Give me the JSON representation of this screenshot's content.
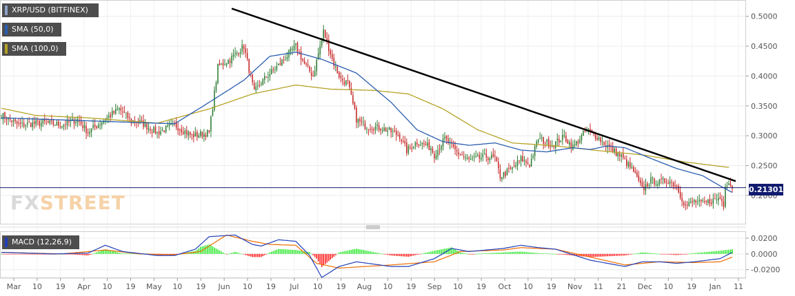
{
  "legend": {
    "pair": "XRP/USD (BITFINEX)",
    "sma50": "SMA (50,0)",
    "sma100": "SMA (100,0)",
    "macd": "MACD (12,26,9)"
  },
  "watermark": {
    "part1": "FX",
    "part2": "STREET"
  },
  "last_price": "0.21301",
  "colors": {
    "bull": "#2e7d32",
    "bear": "#c62828",
    "sma50": "#2a5db0",
    "sma100": "#b5a225",
    "trendline": "#000000",
    "price_line": "#111b6e",
    "macd_line": "#1f3fb8",
    "signal_line": "#ef6c00",
    "hist_pos": "#2ee82e",
    "hist_neg": "#ff1a1a"
  },
  "chart_data": {
    "type": "candlestick",
    "title": "XRP/USD (BITFINEX)",
    "price_axis": {
      "ticks": [
        0.5,
        0.45,
        0.4,
        0.35,
        0.3,
        0.25,
        0.2
      ],
      "tick_labels": [
        "0.5000",
        "0.4500",
        "0.4000",
        "0.3500",
        "0.3000",
        "0.2500",
        "0.2000"
      ],
      "ylim": [
        0.155,
        0.525
      ]
    },
    "macd_axis": {
      "ticks": [
        0.02,
        0.0,
        -0.02
      ],
      "tick_labels": [
        "0.0200",
        "0.0000",
        "-0.0200"
      ],
      "ylim": [
        -0.029,
        0.027
      ]
    },
    "x_tick_labels": [
      "Mar",
      "10",
      "19",
      "Apr",
      "10",
      "19",
      "May",
      "10",
      "19",
      "Jun",
      "10",
      "19",
      "Jul",
      "10",
      "19",
      "Aug",
      "10",
      "19",
      "Sep",
      "10",
      "19",
      "Oct",
      "10",
      "19",
      "Nov",
      "11",
      "21",
      "Dec",
      "10",
      "19",
      "Jan",
      "11"
    ],
    "close_anchors": [
      [
        0,
        0.335
      ],
      [
        10,
        0.318
      ],
      [
        25,
        0.322
      ],
      [
        35,
        0.318
      ],
      [
        44,
        0.327
      ],
      [
        50,
        0.306
      ],
      [
        60,
        0.328
      ],
      [
        68,
        0.345
      ],
      [
        75,
        0.325
      ],
      [
        80,
        0.323
      ],
      [
        90,
        0.305
      ],
      [
        100,
        0.318
      ],
      [
        110,
        0.3
      ],
      [
        120,
        0.305
      ],
      [
        125,
        0.415
      ],
      [
        132,
        0.428
      ],
      [
        140,
        0.45
      ],
      [
        146,
        0.372
      ],
      [
        150,
        0.39
      ],
      [
        160,
        0.418
      ],
      [
        170,
        0.45
      ],
      [
        175,
        0.42
      ],
      [
        180,
        0.4
      ],
      [
        186,
        0.475
      ],
      [
        192,
        0.42
      ],
      [
        196,
        0.395
      ],
      [
        200,
        0.388
      ],
      [
        205,
        0.328
      ],
      [
        210,
        0.316
      ],
      [
        220,
        0.313
      ],
      [
        230,
        0.3
      ],
      [
        234,
        0.275
      ],
      [
        240,
        0.29
      ],
      [
        248,
        0.28
      ],
      [
        250,
        0.268
      ],
      [
        256,
        0.295
      ],
      [
        262,
        0.275
      ],
      [
        270,
        0.259
      ],
      [
        280,
        0.265
      ],
      [
        285,
        0.262
      ],
      [
        288,
        0.232
      ],
      [
        295,
        0.245
      ],
      [
        300,
        0.261
      ],
      [
        305,
        0.252
      ],
      [
        310,
        0.295
      ],
      [
        318,
        0.285
      ],
      [
        325,
        0.298
      ],
      [
        330,
        0.281
      ],
      [
        338,
        0.31
      ],
      [
        345,
        0.296
      ],
      [
        350,
        0.282
      ],
      [
        358,
        0.265
      ],
      [
        365,
        0.24
      ],
      [
        370,
        0.21
      ],
      [
        375,
        0.225
      ],
      [
        380,
        0.222
      ],
      [
        385,
        0.226
      ],
      [
        390,
        0.215
      ],
      [
        395,
        0.182
      ],
      [
        400,
        0.19
      ],
      [
        405,
        0.186
      ],
      [
        410,
        0.191
      ],
      [
        415,
        0.196
      ],
      [
        417,
        0.185
      ],
      [
        418,
        0.22
      ],
      [
        420,
        0.222
      ],
      [
        422,
        0.215
      ]
    ],
    "sma50_anchors": [
      [
        0,
        0.33
      ],
      [
        40,
        0.326
      ],
      [
        80,
        0.322
      ],
      [
        100,
        0.32
      ],
      [
        120,
        0.356
      ],
      [
        140,
        0.393
      ],
      [
        155,
        0.433
      ],
      [
        170,
        0.44
      ],
      [
        185,
        0.428
      ],
      [
        205,
        0.405
      ],
      [
        225,
        0.356
      ],
      [
        240,
        0.31
      ],
      [
        255,
        0.29
      ],
      [
        270,
        0.284
      ],
      [
        285,
        0.288
      ],
      [
        300,
        0.276
      ],
      [
        315,
        0.273
      ],
      [
        330,
        0.28
      ],
      [
        340,
        0.277
      ],
      [
        350,
        0.283
      ],
      [
        360,
        0.28
      ],
      [
        375,
        0.262
      ],
      [
        390,
        0.245
      ],
      [
        405,
        0.233
      ],
      [
        415,
        0.216
      ],
      [
        422,
        0.205
      ]
    ],
    "sma100_anchors": [
      [
        0,
        0.346
      ],
      [
        20,
        0.334
      ],
      [
        50,
        0.33
      ],
      [
        90,
        0.321
      ],
      [
        120,
        0.345
      ],
      [
        145,
        0.37
      ],
      [
        170,
        0.385
      ],
      [
        190,
        0.378
      ],
      [
        215,
        0.376
      ],
      [
        235,
        0.37
      ],
      [
        255,
        0.345
      ],
      [
        275,
        0.31
      ],
      [
        295,
        0.288
      ],
      [
        320,
        0.283
      ],
      [
        345,
        0.275
      ],
      [
        370,
        0.268
      ],
      [
        395,
        0.256
      ],
      [
        420,
        0.247
      ]
    ],
    "trendline": {
      "start": [
        133,
        0.513
      ],
      "end": [
        424,
        0.224
      ]
    },
    "macd_anchors": [
      [
        0,
        0.002
      ],
      [
        30,
        0.0
      ],
      [
        50,
        0.001
      ],
      [
        60,
        0.011
      ],
      [
        70,
        0.003
      ],
      [
        90,
        -0.002
      ],
      [
        100,
        -0.002
      ],
      [
        112,
        0.006
      ],
      [
        120,
        0.022
      ],
      [
        135,
        0.024
      ],
      [
        145,
        0.012
      ],
      [
        150,
        0.01
      ],
      [
        160,
        0.018
      ],
      [
        170,
        0.016
      ],
      [
        178,
        -0.002
      ],
      [
        185,
        -0.03
      ],
      [
        195,
        -0.016
      ],
      [
        205,
        -0.01
      ],
      [
        225,
        -0.016
      ],
      [
        235,
        -0.016
      ],
      [
        250,
        -0.006
      ],
      [
        260,
        0.007
      ],
      [
        270,
        0.003
      ],
      [
        280,
        0.005
      ],
      [
        290,
        0.007
      ],
      [
        300,
        0.011
      ],
      [
        310,
        0.008
      ],
      [
        320,
        0.006
      ],
      [
        340,
        -0.008
      ],
      [
        360,
        -0.016
      ],
      [
        370,
        -0.01
      ],
      [
        380,
        -0.01
      ],
      [
        390,
        -0.012
      ],
      [
        400,
        -0.01
      ],
      [
        415,
        -0.006
      ],
      [
        422,
        0.002
      ]
    ],
    "signal_anchors": [
      [
        0,
        0.002
      ],
      [
        35,
        0.0
      ],
      [
        60,
        0.005
      ],
      [
        80,
        0.0
      ],
      [
        100,
        -0.001
      ],
      [
        115,
        0.003
      ],
      [
        130,
        0.024
      ],
      [
        145,
        0.016
      ],
      [
        155,
        0.012
      ],
      [
        170,
        0.011
      ],
      [
        182,
        -0.012
      ],
      [
        195,
        -0.018
      ],
      [
        210,
        -0.016
      ],
      [
        225,
        -0.014
      ],
      [
        250,
        -0.01
      ],
      [
        265,
        0.003
      ],
      [
        290,
        0.005
      ],
      [
        300,
        0.008
      ],
      [
        320,
        0.006
      ],
      [
        340,
        -0.004
      ],
      [
        360,
        -0.014
      ],
      [
        380,
        -0.01
      ],
      [
        400,
        -0.011
      ],
      [
        415,
        -0.01
      ],
      [
        422,
        -0.004
      ]
    ],
    "grid": true
  }
}
